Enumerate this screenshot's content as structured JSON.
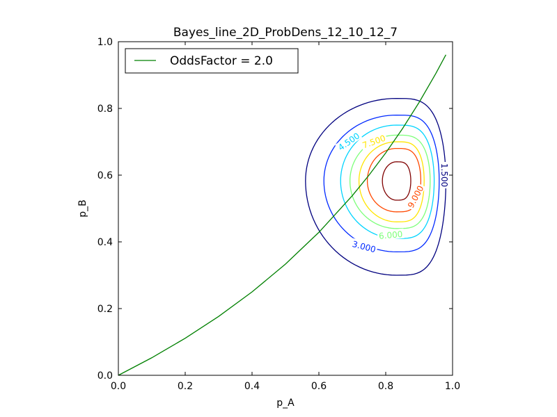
{
  "chart_data": {
    "type": "line",
    "title": "Bayes_line_2D_ProbDens_12_10_12_7",
    "xlabel": "p_A",
    "ylabel": "p_B",
    "xlim": [
      0.0,
      1.0
    ],
    "ylim": [
      0.0,
      1.0
    ],
    "xticks": [
      "0.0",
      "0.2",
      "0.4",
      "0.6",
      "0.8",
      "1.0"
    ],
    "yticks": [
      "0.0",
      "0.2",
      "0.4",
      "0.6",
      "0.8",
      "1.0"
    ],
    "grid": false,
    "legend": {
      "placement": "top-left"
    },
    "series": [
      {
        "name": "OddsFactor = 2.0",
        "color": "#008000",
        "x": [
          0.0,
          0.1,
          0.2,
          0.3,
          0.4,
          0.5,
          0.6,
          0.7,
          0.75,
          0.8,
          0.85,
          0.9,
          0.95,
          0.98
        ],
        "y": [
          0.0,
          0.0526,
          0.1111,
          0.1765,
          0.25,
          0.3333,
          0.4286,
          0.5385,
          0.6,
          0.6667,
          0.7391,
          0.8182,
          0.9048,
          0.9608
        ]
      }
    ],
    "contours": {
      "center": [
        0.832,
        0.583
      ],
      "levels": [
        {
          "value": 1.5,
          "label": "1.500",
          "color": "#00007f",
          "x_range": [
            0.56,
            0.98
          ],
          "y_range": [
            0.3,
            0.83
          ]
        },
        {
          "value": 3.0,
          "label": "3.000",
          "color": "#0029ff",
          "x_range": [
            0.615,
            0.96
          ],
          "y_range": [
            0.37,
            0.78
          ]
        },
        {
          "value": 4.5,
          "label": "4.500",
          "color": "#00d4ff",
          "x_range": [
            0.665,
            0.945
          ],
          "y_range": [
            0.41,
            0.75
          ]
        },
        {
          "value": 6.0,
          "label": "6.000",
          "color": "#7dff7a",
          "x_range": [
            0.693,
            0.933
          ],
          "y_range": [
            0.44,
            0.72
          ]
        },
        {
          "value": 7.5,
          "label": "7.500",
          "color": "#ffe500",
          "x_range": [
            0.72,
            0.915
          ],
          "y_range": [
            0.46,
            0.7
          ]
        },
        {
          "value": 9.0,
          "label": "9.000",
          "color": "#ff4800",
          "x_range": [
            0.745,
            0.905
          ],
          "y_range": [
            0.49,
            0.68
          ]
        },
        {
          "value": 10.5,
          "label": "",
          "color": "#7f0000",
          "x_range": [
            0.79,
            0.875
          ],
          "y_range": [
            0.525,
            0.64
          ]
        }
      ],
      "labeled": [
        {
          "label": "1.500",
          "x": 0.975,
          "y": 0.6
        },
        {
          "label": "3.000",
          "x": 0.735,
          "y": 0.385
        },
        {
          "label": "4.500",
          "x": 0.69,
          "y": 0.7
        },
        {
          "label": "7.500",
          "x": 0.765,
          "y": 0.7
        },
        {
          "label": "9.000",
          "x": 0.89,
          "y": 0.535
        },
        {
          "label": "6.000",
          "x": 0.815,
          "y": 0.42
        }
      ]
    }
  }
}
